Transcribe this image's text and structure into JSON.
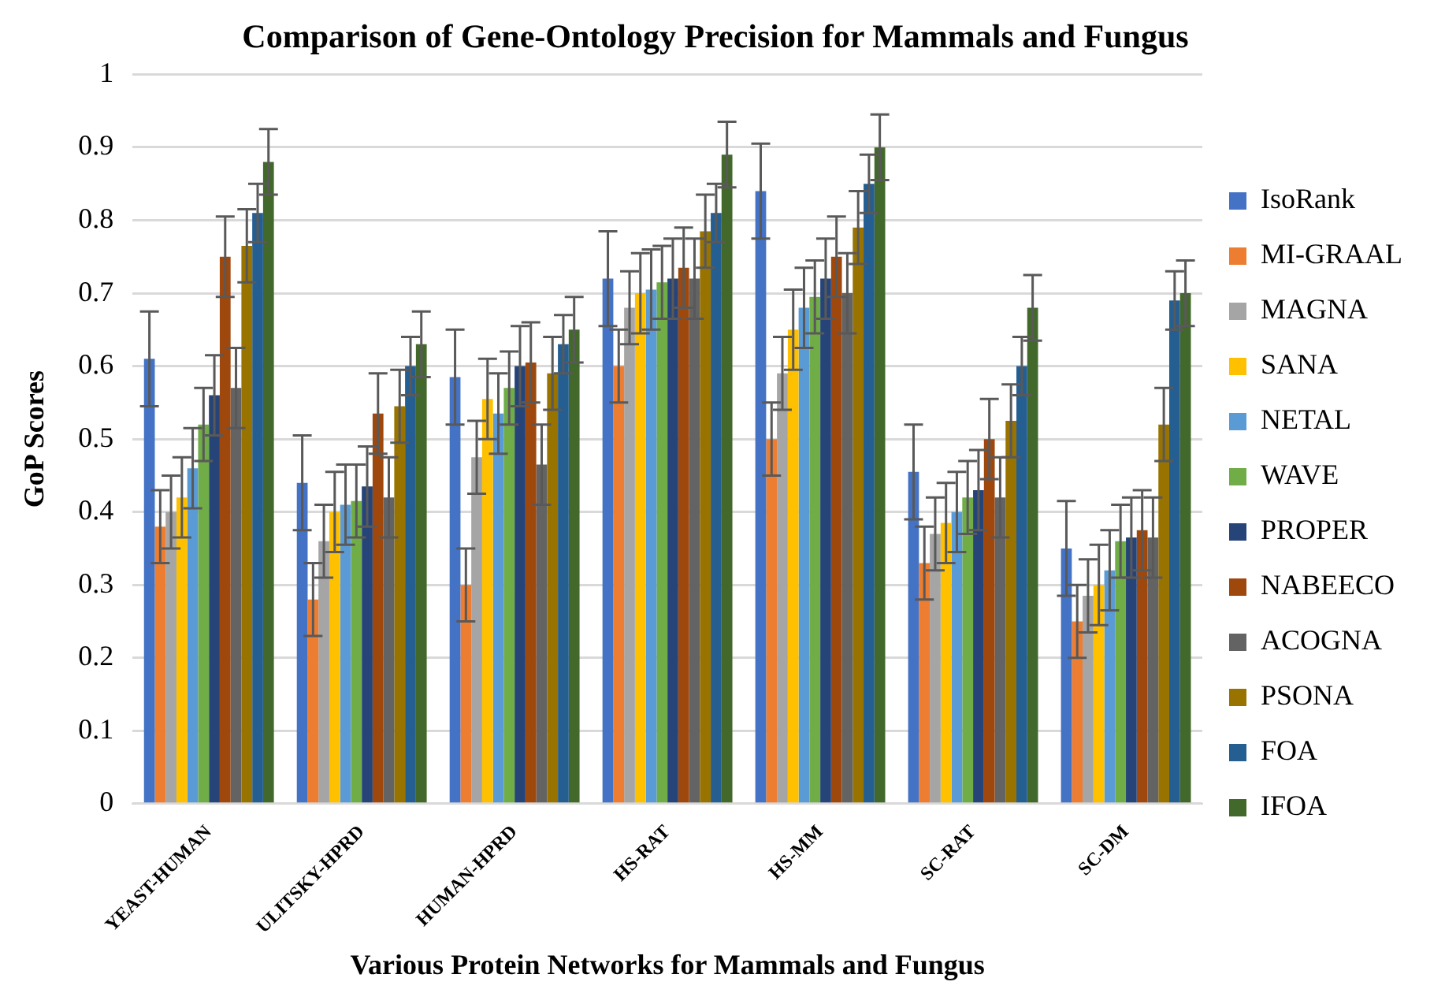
{
  "chart_data": {
    "type": "bar",
    "title": "Comparison of Gene-Ontology Precision for Mammals and Fungus",
    "xlabel": "Various Protein Networks for Mammals and Fungus",
    "ylabel": "GoP Scores",
    "categories": [
      "YEAST-HUMAN",
      "ULITSKY-HPRD",
      "HUMAN-HPRD",
      "HS-RAT",
      "HS-MM",
      "SC-RAT",
      "SC-DM"
    ],
    "series": [
      {
        "name": "IsoRank",
        "color": "#4472c4",
        "values": [
          0.61,
          0.44,
          0.585,
          0.72,
          0.84,
          0.455,
          0.35
        ],
        "errors": [
          0.065,
          0.065,
          0.065,
          0.065,
          0.065,
          0.065,
          0.065
        ]
      },
      {
        "name": "MI-GRAAL",
        "color": "#ed7d31",
        "values": [
          0.38,
          0.28,
          0.3,
          0.6,
          0.5,
          0.33,
          0.25
        ],
        "errors": [
          0.05,
          0.05,
          0.05,
          0.05,
          0.05,
          0.05,
          0.05
        ]
      },
      {
        "name": "MAGNA",
        "color": "#a5a5a5",
        "values": [
          0.4,
          0.36,
          0.475,
          0.68,
          0.59,
          0.37,
          0.285
        ],
        "errors": [
          0.05,
          0.05,
          0.05,
          0.05,
          0.05,
          0.05,
          0.05
        ]
      },
      {
        "name": "SANA",
        "color": "#ffc000",
        "values": [
          0.42,
          0.4,
          0.555,
          0.7,
          0.65,
          0.385,
          0.3
        ],
        "errors": [
          0.055,
          0.055,
          0.055,
          0.055,
          0.055,
          0.055,
          0.055
        ]
      },
      {
        "name": "NETAL",
        "color": "#5b9bd5",
        "values": [
          0.46,
          0.41,
          0.535,
          0.705,
          0.68,
          0.4,
          0.32
        ],
        "errors": [
          0.055,
          0.055,
          0.055,
          0.055,
          0.055,
          0.055,
          0.055
        ]
      },
      {
        "name": "WAVE",
        "color": "#70ad47",
        "values": [
          0.52,
          0.415,
          0.57,
          0.715,
          0.695,
          0.42,
          0.36
        ],
        "errors": [
          0.05,
          0.05,
          0.05,
          0.05,
          0.05,
          0.05,
          0.05
        ]
      },
      {
        "name": "PROPER",
        "color": "#264478",
        "values": [
          0.56,
          0.435,
          0.6,
          0.72,
          0.72,
          0.43,
          0.365
        ],
        "errors": [
          0.055,
          0.055,
          0.055,
          0.055,
          0.055,
          0.055,
          0.055
        ]
      },
      {
        "name": "NABEECO",
        "color": "#9e480e",
        "values": [
          0.75,
          0.535,
          0.605,
          0.735,
          0.75,
          0.5,
          0.375
        ],
        "errors": [
          0.055,
          0.055,
          0.055,
          0.055,
          0.055,
          0.055,
          0.055
        ]
      },
      {
        "name": "ACOGNA",
        "color": "#636363",
        "values": [
          0.57,
          0.42,
          0.465,
          0.72,
          0.7,
          0.42,
          0.365
        ],
        "errors": [
          0.055,
          0.055,
          0.055,
          0.055,
          0.055,
          0.055,
          0.055
        ]
      },
      {
        "name": "PSONA",
        "color": "#997300",
        "values": [
          0.765,
          0.545,
          0.59,
          0.785,
          0.79,
          0.525,
          0.52
        ],
        "errors": [
          0.05,
          0.05,
          0.05,
          0.05,
          0.05,
          0.05,
          0.05
        ]
      },
      {
        "name": "FOA",
        "color": "#255e91",
        "values": [
          0.81,
          0.6,
          0.63,
          0.81,
          0.85,
          0.6,
          0.69
        ],
        "errors": [
          0.04,
          0.04,
          0.04,
          0.04,
          0.04,
          0.04,
          0.04
        ]
      },
      {
        "name": "IFOA",
        "color": "#43682b",
        "values": [
          0.88,
          0.63,
          0.65,
          0.89,
          0.9,
          0.68,
          0.7
        ],
        "errors": [
          0.045,
          0.045,
          0.045,
          0.045,
          0.045,
          0.045,
          0.045
        ]
      }
    ],
    "ylim": [
      0,
      1
    ],
    "yticks": [
      0,
      0.1,
      0.2,
      0.3,
      0.4,
      0.5,
      0.6,
      0.7,
      0.8,
      0.9,
      1
    ],
    "grid": "y",
    "legend": "right"
  }
}
